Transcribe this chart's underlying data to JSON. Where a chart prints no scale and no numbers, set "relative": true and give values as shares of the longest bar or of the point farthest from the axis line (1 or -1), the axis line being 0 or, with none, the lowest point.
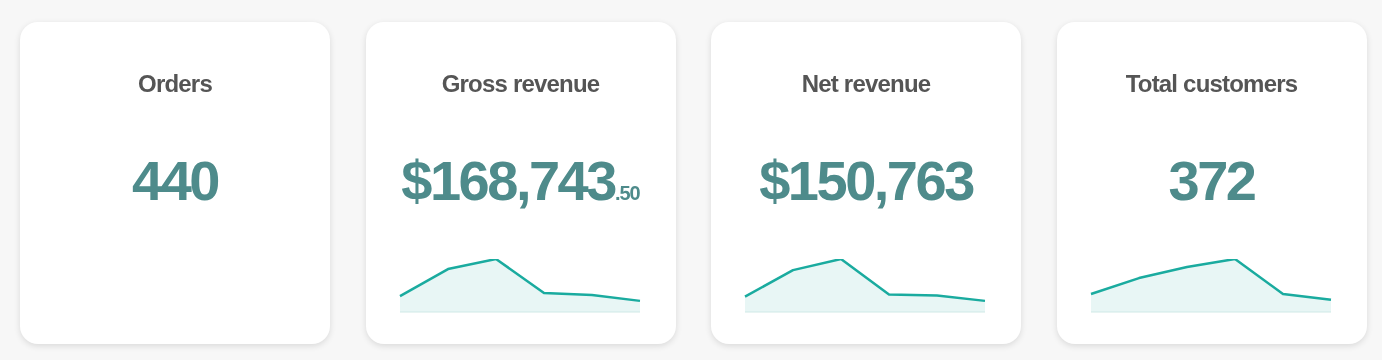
{
  "chart_data": [
    {
      "type": "other",
      "title": "Orders",
      "subtitle": "440"
    },
    {
      "type": "area",
      "title": "Gross revenue",
      "subtitle": "$168,743.50",
      "relative": true,
      "categories": [
        null,
        null,
        null,
        null,
        null,
        null
      ],
      "color": "#1aab9f",
      "values": [
        0.3,
        0.81,
        1,
        0.36,
        0.32,
        0.21
      ]
    },
    {
      "type": "area",
      "title": "Net revenue",
      "subtitle": "$150,763",
      "relative": true,
      "categories": [
        null,
        null,
        null,
        null,
        null,
        null
      ],
      "color": "#1aab9f",
      "values": [
        0.29,
        0.79,
        1,
        0.33,
        0.31,
        0.21
      ]
    },
    {
      "type": "area",
      "title": "Total customers",
      "subtitle": "372",
      "relative": true,
      "categories": [
        null,
        null,
        null,
        null,
        null,
        null
      ],
      "color": "#1aab9f",
      "values": [
        0.34,
        0.64,
        0.85,
        1,
        0.34,
        0.23
      ]
    }
  ]
}
